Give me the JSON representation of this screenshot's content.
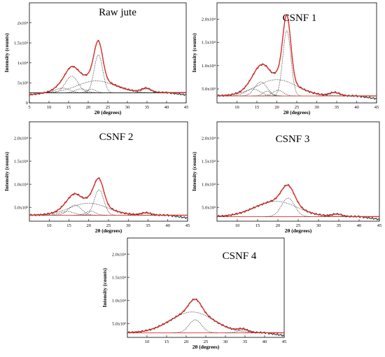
{
  "chart_data": [
    {
      "type": "line",
      "title": "Raw jute",
      "xlabel": "2θ (degrees)",
      "ylabel": "Intensity (counts)",
      "xlim": [
        5,
        45
      ],
      "ylim": [
        0,
        25000
      ],
      "xticks": [
        5,
        10,
        15,
        20,
        25,
        30,
        35,
        40,
        45
      ],
      "yticks": [
        {
          "v": 0,
          "label": "0"
        },
        {
          "v": 5000,
          "label": "5x10³"
        },
        {
          "v": 10000,
          "label": "1x10⁴"
        },
        {
          "v": 15000,
          "label": "1.5x10⁴"
        },
        {
          "v": 20000,
          "label": "2x10⁴"
        }
      ],
      "baseline": 2500,
      "peaks": [
        {
          "center": 13.5,
          "height": 1200,
          "width": 1.8
        },
        {
          "center": 15.8,
          "height": 4200,
          "width": 1.6
        },
        {
          "center": 18.2,
          "height": 1000,
          "width": 1.5
        },
        {
          "center": 20.8,
          "height": 900,
          "width": 1.2
        },
        {
          "center": 22.6,
          "height": 9500,
          "width": 1.1
        },
        {
          "center": 22.0,
          "height": 3000,
          "width": 4.8
        },
        {
          "center": 34.8,
          "height": 1000,
          "width": 1.2
        }
      ]
    },
    {
      "type": "line",
      "title": "CSNF 1",
      "xlabel": "2θ (degrees)",
      "ylabel": "Intensity (counts)",
      "xlim": [
        5,
        45
      ],
      "ylim": [
        2000,
        23500
      ],
      "xticks": [
        10,
        15,
        20,
        25,
        30,
        35,
        40,
        45
      ],
      "yticks": [
        {
          "v": 5000,
          "label": "5.0x10³"
        },
        {
          "v": 10000,
          "label": "1.0x10⁴"
        },
        {
          "v": 15000,
          "label": "1.5x10⁴"
        },
        {
          "v": 20000,
          "label": "2.0x10⁴"
        }
      ],
      "baseline": 3500,
      "peaks": [
        {
          "center": 14.0,
          "height": 1500,
          "width": 1.8
        },
        {
          "center": 16.0,
          "height": 3000,
          "width": 1.5
        },
        {
          "center": 17.5,
          "height": 1000,
          "width": 1.0
        },
        {
          "center": 20.3,
          "height": 1200,
          "width": 1.3
        },
        {
          "center": 22.5,
          "height": 14000,
          "width": 1.0
        },
        {
          "center": 20.0,
          "height": 3500,
          "width": 5.0
        },
        {
          "center": 34.5,
          "height": 700,
          "width": 1.3
        }
      ]
    },
    {
      "type": "line",
      "title": "CSNF 2",
      "xlabel": "2θ (degrees)",
      "ylabel": "Intensity (counts)",
      "xlim": [
        5,
        45
      ],
      "ylim": [
        2000,
        23500
      ],
      "xticks": [
        10,
        15,
        20,
        25,
        30,
        35,
        40,
        45
      ],
      "yticks": [
        {
          "v": 5000,
          "label": "5.0x10³"
        },
        {
          "v": 10000,
          "label": "1.0x10⁴"
        },
        {
          "v": 15000,
          "label": "1.5x10⁴"
        },
        {
          "v": 20000,
          "label": "2.0x10⁴"
        }
      ],
      "baseline": 3300,
      "peaks": [
        {
          "center": 14.5,
          "height": 800,
          "width": 1.8
        },
        {
          "center": 16.5,
          "height": 2200,
          "width": 1.6
        },
        {
          "center": 20.5,
          "height": 900,
          "width": 1.2
        },
        {
          "center": 22.6,
          "height": 5500,
          "width": 1.2
        },
        {
          "center": 20.0,
          "height": 2600,
          "width": 4.8
        },
        {
          "center": 34.5,
          "height": 500,
          "width": 1.3
        }
      ]
    },
    {
      "type": "line",
      "title": "CSNF 3",
      "xlabel": "2θ (degrees)",
      "ylabel": "Intensity (counts)",
      "xlim": [
        5,
        45
      ],
      "ylim": [
        2000,
        23500
      ],
      "xticks": [
        10,
        15,
        20,
        25,
        30,
        35,
        40,
        45
      ],
      "yticks": [
        {
          "v": 5000,
          "label": "5.0x10³"
        },
        {
          "v": 10000,
          "label": "1.0x10⁴"
        },
        {
          "v": 15000,
          "label": "1.5x10⁴"
        },
        {
          "v": 20000,
          "label": "2.0x10⁴"
        }
      ],
      "baseline": 3000,
      "peaks": [
        {
          "center": 22.5,
          "height": 4000,
          "width": 1.6
        },
        {
          "center": 19.5,
          "height": 3300,
          "width": 5.2
        },
        {
          "center": 34.5,
          "height": 500,
          "width": 1.3
        }
      ]
    },
    {
      "type": "line",
      "title": "CSNF 4",
      "xlabel": "2θ (degrees)",
      "ylabel": "Intensity (counts)",
      "xlim": [
        5,
        45
      ],
      "ylim": [
        2000,
        23500
      ],
      "xticks": [
        10,
        15,
        20,
        25,
        30,
        35,
        40,
        45
      ],
      "yticks": [
        {
          "v": 5000,
          "label": "5.0x10³"
        },
        {
          "v": 10000,
          "label": "1.0x10⁴"
        },
        {
          "v": 15000,
          "label": "1.5x10⁴"
        },
        {
          "v": 20000,
          "label": "2.0x10⁴"
        }
      ],
      "baseline": 3000,
      "peaks": [
        {
          "center": 22.3,
          "height": 2800,
          "width": 1.6
        },
        {
          "center": 21.5,
          "height": 4500,
          "width": 5.5
        },
        {
          "center": 34.5,
          "height": 600,
          "width": 1.3
        }
      ]
    }
  ]
}
